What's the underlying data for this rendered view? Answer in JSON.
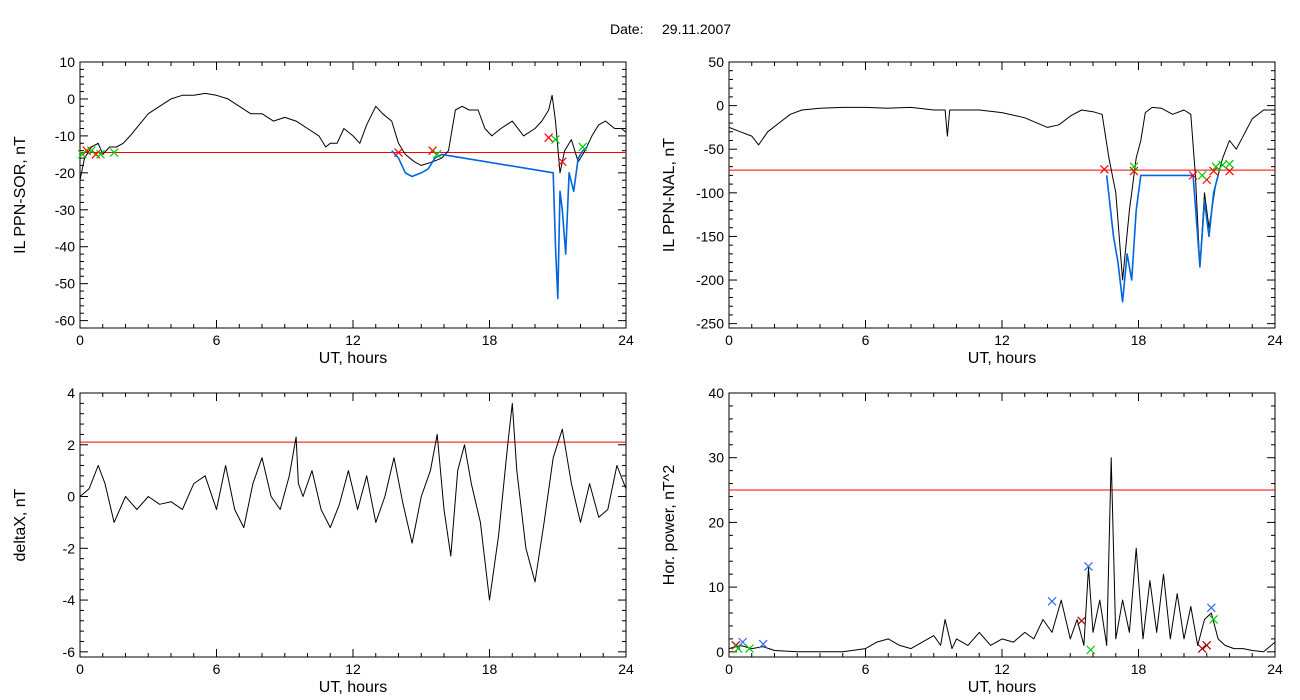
{
  "header": {
    "date_label": "Date:",
    "date_value": "29.11.2007"
  },
  "chart_data": [
    {
      "type": "line",
      "id": "tl",
      "xlabel": "UT, hours",
      "ylabel": "IL PPN-SOR, nT",
      "xlim": [
        0,
        24
      ],
      "ylim": [
        -62,
        10
      ],
      "xticks": [
        0,
        6,
        12,
        18,
        24
      ],
      "yticks": [
        10,
        0,
        -10,
        -20,
        -30,
        -40,
        -50,
        -60
      ],
      "threshold": -14.5,
      "series": [
        {
          "color": "#000000",
          "x": [
            0,
            0.2,
            0.5,
            0.8,
            1.0,
            1.3,
            1.6,
            1.9,
            2.2,
            2.6,
            3.0,
            3.5,
            4.0,
            4.5,
            5.0,
            5.5,
            6.0,
            6.5,
            7.0,
            7.5,
            8.0,
            8.5,
            9.0,
            9.5,
            10.0,
            10.5,
            10.8,
            11.0,
            11.3,
            11.6,
            12.0,
            12.3,
            12.6,
            13.0,
            13.3,
            13.7,
            14.0,
            14.3,
            14.7,
            15.0,
            15.5,
            15.9,
            16.2,
            16.5,
            16.8,
            17.1,
            17.5,
            17.8,
            18.1,
            18.5,
            19.0,
            19.5,
            20.0,
            20.3,
            20.6,
            20.75,
            20.9,
            21.1,
            21.3,
            21.6,
            21.9,
            22.2,
            22.5,
            22.8,
            23.1,
            23.5,
            23.8,
            24.0
          ],
          "y": [
            -22,
            -16,
            -13,
            -12,
            -15,
            -13,
            -13,
            -12,
            -10,
            -7,
            -4,
            -2,
            0,
            1,
            1,
            1.5,
            1,
            0,
            -2,
            -4,
            -4,
            -6,
            -5,
            -6,
            -8,
            -10,
            -13,
            -12,
            -12,
            -8,
            -10,
            -12,
            -7,
            -2,
            -4,
            -6,
            -12,
            -15,
            -17,
            -18,
            -17,
            -16,
            -14,
            -3,
            -2,
            -3,
            -3,
            -8,
            -10,
            -8,
            -6,
            -10,
            -8,
            -6,
            -3,
            1,
            -6,
            -20,
            -14,
            -11,
            -17,
            -14,
            -10,
            -7,
            -6,
            -8,
            -8,
            -9
          ]
        },
        {
          "color": "#0066dd",
          "x": [
            13.7,
            14.0,
            14.3,
            14.6,
            15.0,
            15.3,
            15.6,
            15.9,
            20.8,
            20.9,
            21.0,
            21.1,
            21.2,
            21.35,
            21.5,
            21.7,
            21.9,
            22.1,
            22.3
          ],
          "y": [
            -14,
            -16,
            -20,
            -21,
            -20,
            -19,
            -16,
            -15,
            -20,
            -40,
            -54,
            -25,
            -30,
            -42,
            -20,
            -25,
            -16,
            -14,
            -13
          ]
        }
      ],
      "markers": [
        {
          "color": "#ff0000",
          "x": [
            0.3,
            0.7,
            14.0,
            15.5,
            20.6,
            21.2
          ],
          "y": [
            -14,
            -15,
            -14.5,
            -14,
            -10.5,
            -17
          ]
        },
        {
          "color": "#00cc00",
          "x": [
            0.1,
            0.5,
            0.9,
            1.5,
            15.7,
            20.9,
            22.1
          ],
          "y": [
            -15,
            -14,
            -15,
            -14.5,
            -15,
            -11,
            -13
          ]
        }
      ]
    },
    {
      "type": "line",
      "id": "tr",
      "xlabel": "UT, hours",
      "ylabel": "IL PPN-NAL, nT",
      "xlim": [
        0,
        24
      ],
      "ylim": [
        -255,
        50
      ],
      "xticks": [
        0,
        6,
        12,
        18,
        24
      ],
      "yticks": [
        50,
        0,
        -50,
        -100,
        -150,
        -200,
        -250
      ],
      "threshold": -74,
      "series": [
        {
          "color": "#000000",
          "x": [
            0,
            0.5,
            1.0,
            1.3,
            1.7,
            2.2,
            2.7,
            3.2,
            4.0,
            5.0,
            6.0,
            7.0,
            8.0,
            9.0,
            9.5,
            9.6,
            9.7,
            10.0,
            11.0,
            12.0,
            13.0,
            14.0,
            14.5,
            15.0,
            15.5,
            16.0,
            16.4,
            16.7,
            17.0,
            17.3,
            17.6,
            17.9,
            18.1,
            18.3,
            18.6,
            19.0,
            19.5,
            20.0,
            20.3,
            20.5,
            20.7,
            20.9,
            21.1,
            21.4,
            21.7,
            22.0,
            22.3,
            22.7,
            23.0,
            23.5,
            24.0
          ],
          "y": [
            -25,
            -30,
            -35,
            -45,
            -30,
            -20,
            -10,
            -5,
            -3,
            -2,
            -2,
            -3,
            -2,
            -5,
            -5,
            -35,
            -5,
            -5,
            -5,
            -8,
            -14,
            -25,
            -22,
            -12,
            -5,
            -7,
            -10,
            -60,
            -100,
            -200,
            -120,
            -60,
            -40,
            -8,
            -2,
            -3,
            -10,
            -5,
            -10,
            -80,
            -185,
            -100,
            -140,
            -90,
            -60,
            -40,
            -50,
            -30,
            -15,
            -5,
            -5
          ]
        },
        {
          "color": "#0066dd",
          "x": [
            16.6,
            16.9,
            17.1,
            17.3,
            17.5,
            17.7,
            17.9,
            18.1,
            20.4,
            20.6,
            20.7,
            20.9,
            21.1,
            21.3,
            21.5
          ],
          "y": [
            -80,
            -150,
            -180,
            -225,
            -170,
            -200,
            -120,
            -80,
            -80,
            -150,
            -185,
            -110,
            -150,
            -100,
            -80
          ]
        }
      ],
      "markers": [
        {
          "color": "#ff0000",
          "x": [
            16.5,
            17.8,
            20.4,
            21.0,
            21.3,
            22.0
          ],
          "y": [
            -73,
            -75,
            -80,
            -85,
            -75,
            -75
          ]
        },
        {
          "color": "#00cc00",
          "x": [
            17.8,
            20.8,
            21.4,
            21.7,
            22.0
          ],
          "y": [
            -70,
            -80,
            -70,
            -68,
            -67
          ]
        }
      ]
    },
    {
      "type": "line",
      "id": "bl",
      "xlabel": "UT, hours",
      "ylabel": "deltaX, nT",
      "xlim": [
        0,
        24
      ],
      "ylim": [
        -6.2,
        4
      ],
      "xticks": [
        0,
        6,
        12,
        18,
        24
      ],
      "yticks": [
        4,
        2,
        0,
        -2,
        -4,
        -6
      ],
      "threshold": 2.1,
      "series": [
        {
          "color": "#000000",
          "x": [
            0,
            0.4,
            0.8,
            1.1,
            1.5,
            2.0,
            2.5,
            3.0,
            3.5,
            4.0,
            4.5,
            5.0,
            5.5,
            6.0,
            6.4,
            6.8,
            7.2,
            7.6,
            8.0,
            8.4,
            8.8,
            9.2,
            9.5,
            9.6,
            9.8,
            10.2,
            10.6,
            11.0,
            11.4,
            11.8,
            12.2,
            12.6,
            13.0,
            13.4,
            13.8,
            14.2,
            14.6,
            15.0,
            15.4,
            15.7,
            16.0,
            16.3,
            16.6,
            16.9,
            17.2,
            17.6,
            18.0,
            18.4,
            18.8,
            19.0,
            19.2,
            19.6,
            20.0,
            20.4,
            20.8,
            21.2,
            21.6,
            22.0,
            22.4,
            22.8,
            23.2,
            23.6,
            24.0
          ],
          "y": [
            0,
            0.3,
            1.2,
            0.5,
            -1.0,
            0,
            -0.5,
            0,
            -0.3,
            -0.2,
            -0.5,
            0.5,
            0.8,
            -0.5,
            1.2,
            -0.5,
            -1.2,
            0.5,
            1.5,
            0,
            -0.5,
            0.8,
            2.3,
            0.5,
            0,
            1.0,
            -0.5,
            -1.2,
            -0.3,
            1.0,
            -0.5,
            0.8,
            -1.0,
            0,
            1.5,
            -0.3,
            -1.8,
            0,
            1.0,
            2.4,
            -0.5,
            -2.3,
            1.0,
            2.0,
            0.5,
            -1.0,
            -4.0,
            -1.5,
            2.0,
            3.6,
            1.0,
            -2.0,
            -3.3,
            -1.0,
            1.5,
            2.6,
            0.5,
            -1.0,
            0.5,
            -0.8,
            -0.5,
            1.2,
            0.3
          ]
        }
      ],
      "markers": []
    },
    {
      "type": "line",
      "id": "br",
      "xlabel": "UT, hours",
      "ylabel": "Hor. power, nT^2",
      "xlim": [
        0,
        24
      ],
      "ylim": [
        -0.8,
        40
      ],
      "xticks": [
        0,
        6,
        12,
        18,
        24
      ],
      "yticks": [
        40,
        30,
        20,
        10,
        0
      ],
      "threshold": 25,
      "series": [
        {
          "color": "#000000",
          "x": [
            0,
            0.5,
            1.0,
            1.5,
            2.0,
            3.0,
            4.0,
            5.0,
            6.0,
            6.5,
            7.0,
            7.5,
            8.0,
            8.5,
            9.0,
            9.3,
            9.5,
            9.8,
            10.0,
            10.5,
            11.0,
            11.5,
            12.0,
            12.5,
            13.0,
            13.4,
            13.8,
            14.2,
            14.6,
            15.0,
            15.3,
            15.6,
            15.8,
            16.0,
            16.3,
            16.6,
            16.8,
            17.0,
            17.3,
            17.6,
            17.9,
            18.2,
            18.5,
            18.8,
            19.1,
            19.4,
            19.7,
            20.0,
            20.3,
            20.6,
            20.9,
            21.2,
            21.5,
            21.8,
            22.2,
            22.6,
            23.0,
            23.5,
            24.0
          ],
          "y": [
            0.5,
            1.0,
            0.5,
            0.8,
            0.2,
            0,
            0,
            0,
            0.5,
            1.5,
            2.0,
            1.0,
            0.5,
            1.5,
            2.5,
            1.0,
            5.0,
            0.5,
            2.0,
            1.0,
            3.0,
            1.0,
            2.0,
            1.5,
            3.0,
            2.0,
            5.0,
            3.0,
            8.0,
            2.0,
            5.0,
            1.0,
            13.0,
            3.0,
            8.0,
            1.0,
            30.0,
            2.0,
            8.0,
            3.0,
            16.0,
            2.0,
            11.0,
            3.0,
            12.0,
            2.0,
            9.0,
            2.0,
            7.0,
            1.0,
            5.0,
            6.0,
            2.0,
            1.0,
            0.5,
            0.5,
            0.2,
            0,
            1.5
          ]
        }
      ],
      "markers": [
        {
          "color": "#3366ff",
          "x": [
            0.6,
            1.5,
            14.2,
            15.8,
            21.2
          ],
          "y": [
            1.5,
            1.2,
            7.8,
            13.2,
            6.8
          ]
        },
        {
          "color": "#aa0000",
          "x": [
            0.3,
            15.5,
            20.8,
            21.0
          ],
          "y": [
            1.0,
            4.8,
            0.5,
            1.0
          ]
        },
        {
          "color": "#00cc00",
          "x": [
            0.4,
            0.9,
            15.9,
            21.3
          ],
          "y": [
            0.5,
            0.5,
            0.3,
            5.0
          ]
        }
      ]
    }
  ]
}
